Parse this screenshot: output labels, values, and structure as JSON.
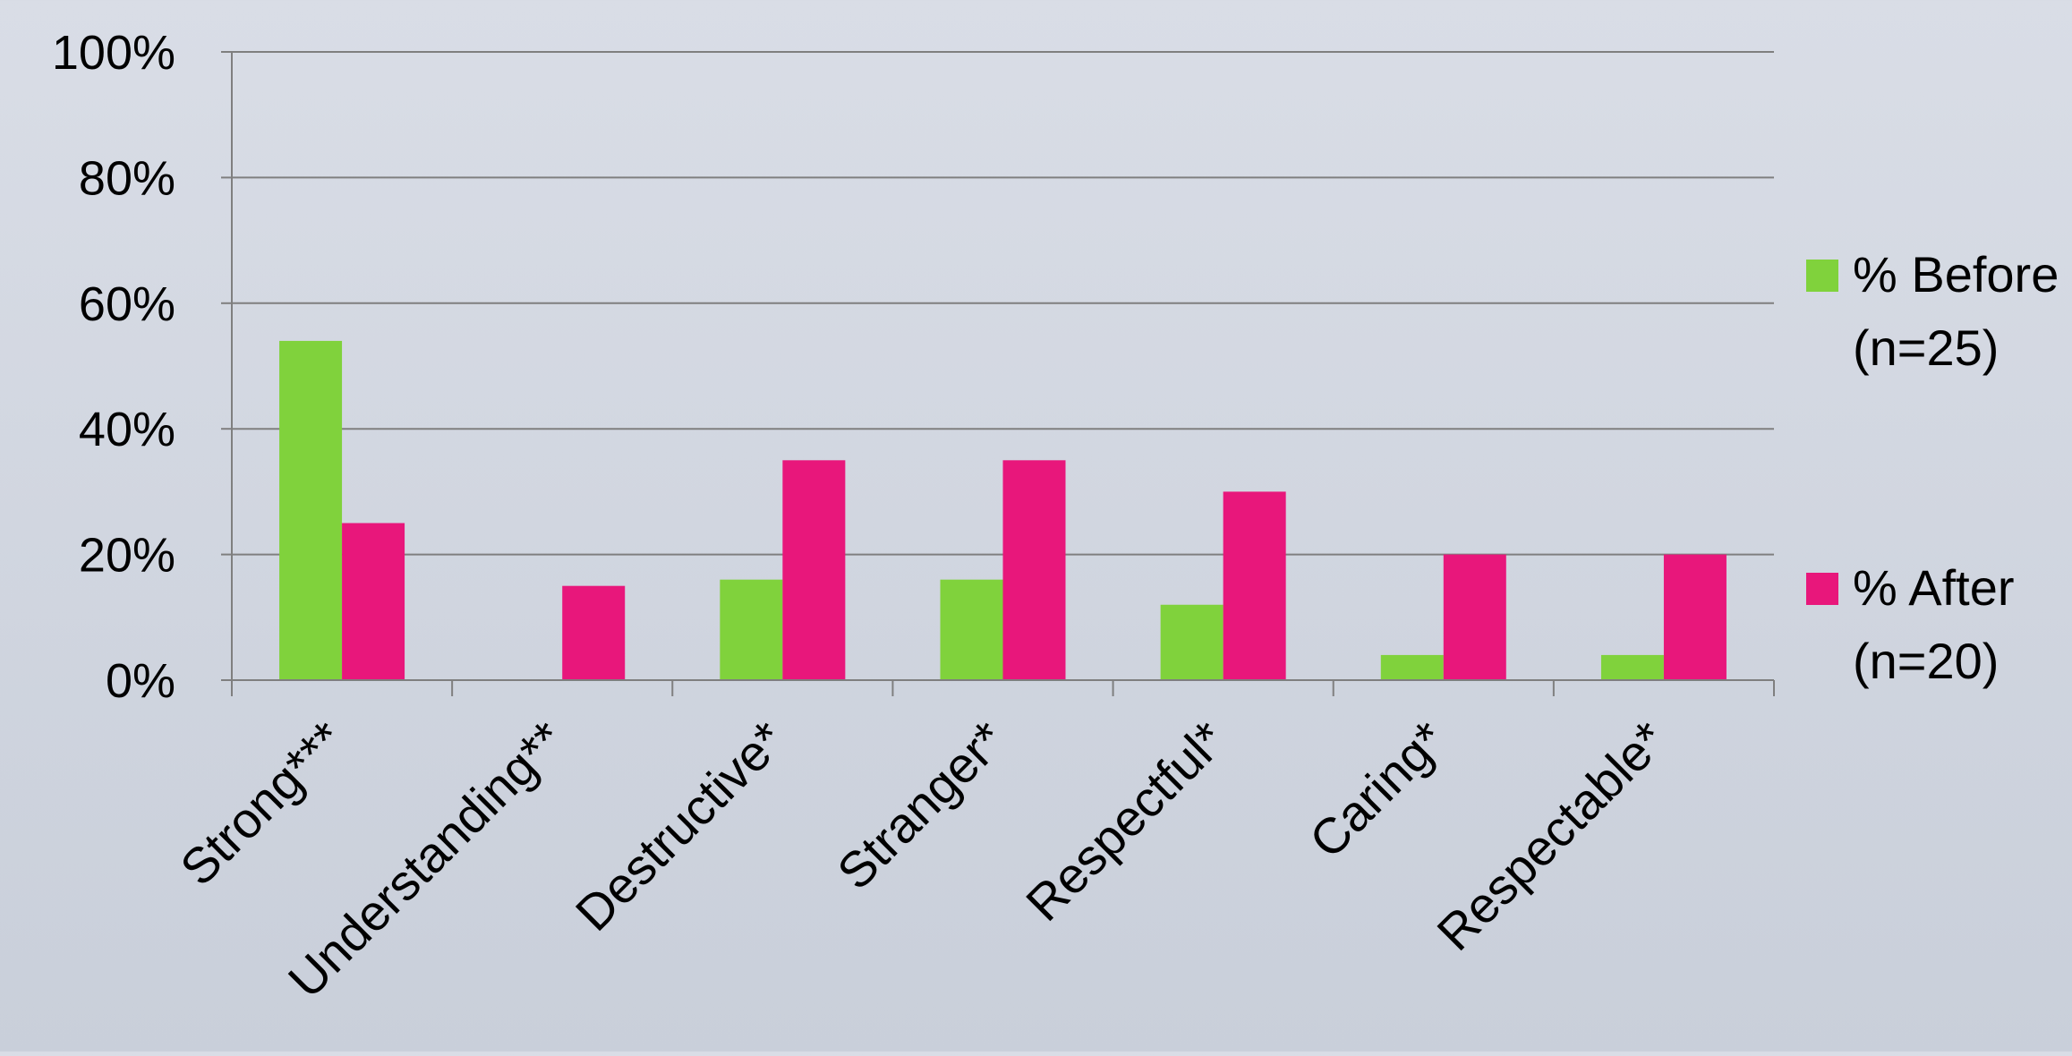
{
  "chart_data": {
    "type": "bar",
    "categories": [
      "Strong***",
      "Understanding**",
      "Destructive*",
      "Stranger*",
      "Respectful*",
      "Caring*",
      "Respectable*"
    ],
    "series": [
      {
        "name": "% Before (n=25)",
        "legend_lines": [
          "% Before",
          "(n=25)"
        ],
        "values": [
          54,
          0,
          16,
          16,
          12,
          4,
          4
        ],
        "color": "#80d23c"
      },
      {
        "name": "% After (n=20)",
        "legend_lines": [
          "% After",
          "(n=20)"
        ],
        "values": [
          25,
          15,
          35,
          35,
          30,
          20,
          20
        ],
        "color": "#e8177b"
      }
    ],
    "ylim": [
      0,
      100
    ],
    "y_ticks": [
      0,
      20,
      40,
      60,
      80,
      100
    ],
    "y_tick_labels": [
      "0%",
      "20%",
      "40%",
      "60%",
      "80%",
      "100%"
    ],
    "grid": true,
    "legend_position": "right",
    "title": "",
    "xlabel": "",
    "ylabel": ""
  },
  "colors": {
    "background": "#d2d7e0",
    "gridline": "#7f7f7f",
    "text": "#000000"
  }
}
